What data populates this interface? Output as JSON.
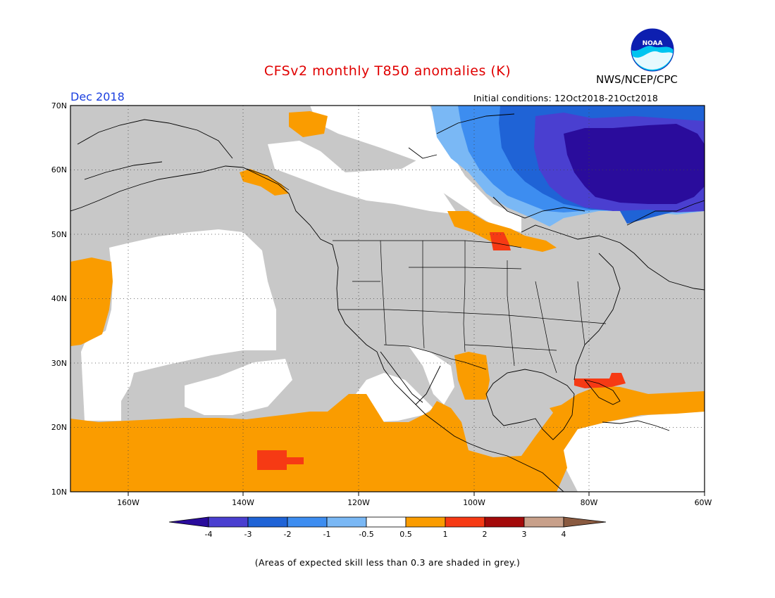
{
  "title": "CFSv2 monthly T850 anomalies (K)",
  "agency": "NWS/NCEP/CPC",
  "logo_text": "NOAA",
  "month_label": "Dec 2018",
  "initial_conditions": "Initial conditions: 12Oct2018-21Oct2018",
  "footnote": "(Areas of expected skill less than 0.3 are shaded in grey.)",
  "lat_labels": [
    "70N",
    "60N",
    "50N",
    "40N",
    "30N",
    "20N",
    "10N"
  ],
  "lon_labels": [
    "160W",
    "140W",
    "120W",
    "100W",
    "80W",
    "60W"
  ],
  "colorbar": {
    "labels": [
      "-4",
      "-3",
      "-2",
      "-1",
      "-0.5",
      "0.5",
      "1",
      "2",
      "3",
      "4"
    ],
    "colors": [
      "#2a0c9c",
      "#4a3fd0",
      "#1f63d6",
      "#3d8df0",
      "#7ab8f5",
      "#ffffff",
      "#fa9c00",
      "#f63a14",
      "#a30a0a",
      "#c8a08a",
      "#8a5a40"
    ]
  },
  "colors": {
    "grey_skill": "#c8c8c8",
    "neutral": "#ffffff",
    "warm_1": "#fa9c00",
    "warm_2": "#f63a14",
    "cold_05": "#7ab8f5",
    "cold_1": "#3d8df0",
    "cold_2": "#1f63d6",
    "cold_3": "#4a3fd0",
    "cold_4": "#2a0c9c"
  }
}
